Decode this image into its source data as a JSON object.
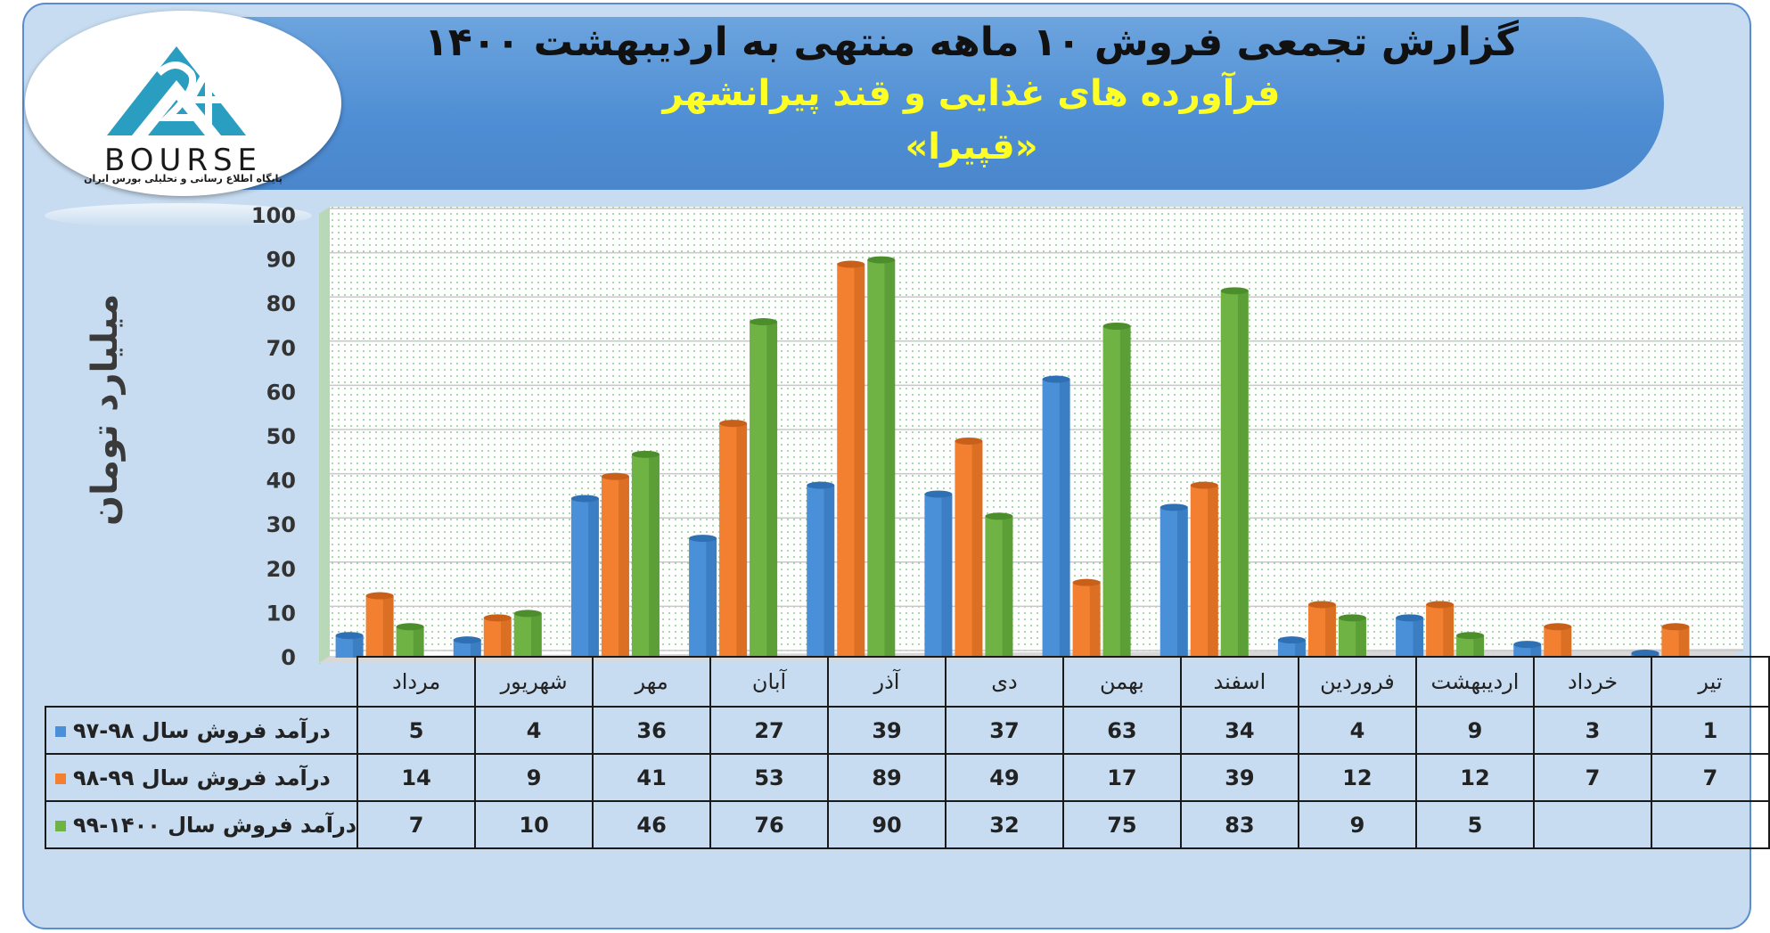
{
  "title": {
    "main": "گزارش تجمعی فروش ۱۰ ماهه منتهی به اردیبهشت ۱۴۰۰",
    "company": "فرآورده های غذایی و قند پیرانشهر",
    "ticker": "«قپیرا»"
  },
  "logo": {
    "wordmark": "BOURSE",
    "tagline": "پایگاه اطلاع رسانی و تحلیلی بورس ایران",
    "mark_text": "24"
  },
  "colors": {
    "series_1": "#4a90d8",
    "series_2": "#f28030",
    "series_3": "#6fb345",
    "plot_background": "#ffffff",
    "grid_dots": "#6cbf70"
  },
  "chart_data": {
    "type": "bar",
    "ylabel": "میلیارد تومان",
    "ylim": [
      0,
      100
    ],
    "yticks": [
      0,
      10,
      20,
      30,
      40,
      50,
      60,
      70,
      80,
      90,
      100
    ],
    "grid": true,
    "categories": [
      "مرداد",
      "شهریور",
      "مهر",
      "آبان",
      "آذر",
      "دی",
      "بهمن",
      "اسفند",
      "فروردین",
      "اردیبهشت",
      "خرداد",
      "تیر"
    ],
    "series": [
      {
        "name": "درآمد فروش سال ۹۸-۹۷",
        "values": [
          5,
          4,
          36,
          27,
          39,
          37,
          63,
          34,
          4,
          9,
          3,
          1
        ]
      },
      {
        "name": "درآمد فروش سال ۹۹-۹۸",
        "values": [
          14,
          9,
          41,
          53,
          89,
          49,
          17,
          39,
          12,
          12,
          7,
          7
        ]
      },
      {
        "name": "درآمد فروش سال ۱۴۰۰-۹۹",
        "values": [
          7,
          10,
          46,
          76,
          90,
          32,
          75,
          83,
          9,
          5,
          null,
          null
        ]
      }
    ]
  }
}
